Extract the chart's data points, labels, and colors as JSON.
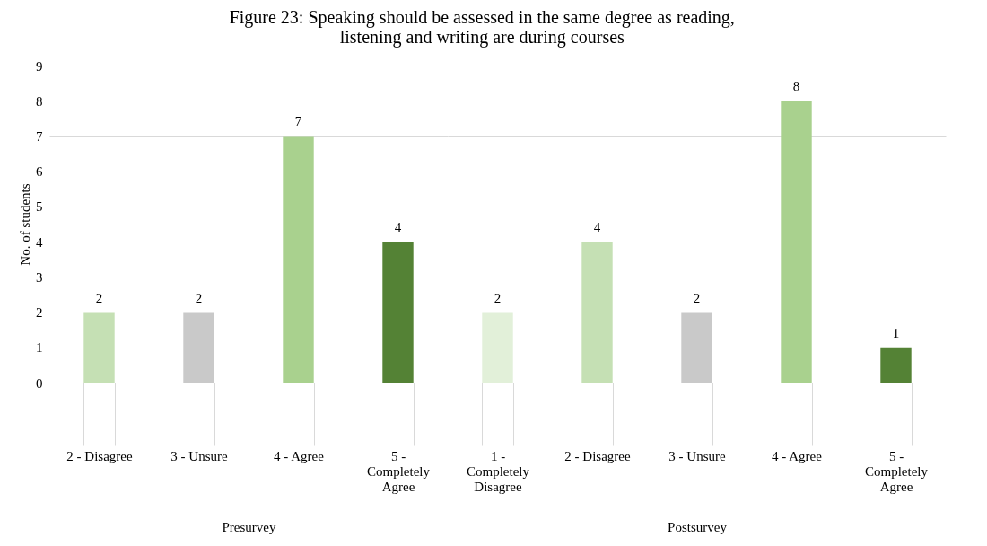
{
  "chart_data": [
    {
      "type": "bar",
      "title": "Figure 23: Speaking should be assessed in the same degree as reading, listening and writing are during courses",
      "xlabel": "Presurvey",
      "ylabel": "No. of students",
      "categories": [
        "2 - Disagree",
        "3 - Unsure",
        "4 - Agree",
        "5 - Completely Agree"
      ],
      "values": [
        2,
        2,
        7,
        4
      ],
      "colors": [
        "#c5e0b4",
        "#c9c9c9",
        "#a9d18e",
        "#548235"
      ],
      "ylim": [
        0,
        9
      ],
      "yticks": [
        0,
        1,
        2,
        3,
        4,
        5,
        6,
        7,
        8,
        9
      ],
      "grid": "y",
      "data_labels": true
    },
    {
      "type": "bar",
      "xlabel": "Postsurvey",
      "categories": [
        "1 - Completely Disagree",
        "2 - Disagree",
        "3 - Unsure",
        "4 - Agree",
        "5 - Completely Agree"
      ],
      "values": [
        2,
        4,
        2,
        8,
        1
      ],
      "colors": [
        "#e2f0d9",
        "#c5e0b4",
        "#c9c9c9",
        "#a9d18e",
        "#548235"
      ],
      "ylim": [
        0,
        9
      ],
      "yticks": [
        0,
        1,
        2,
        3,
        4,
        5,
        6,
        7,
        8,
        9
      ],
      "grid": "y",
      "data_labels": true,
      "tick_labels": "x"
    }
  ]
}
